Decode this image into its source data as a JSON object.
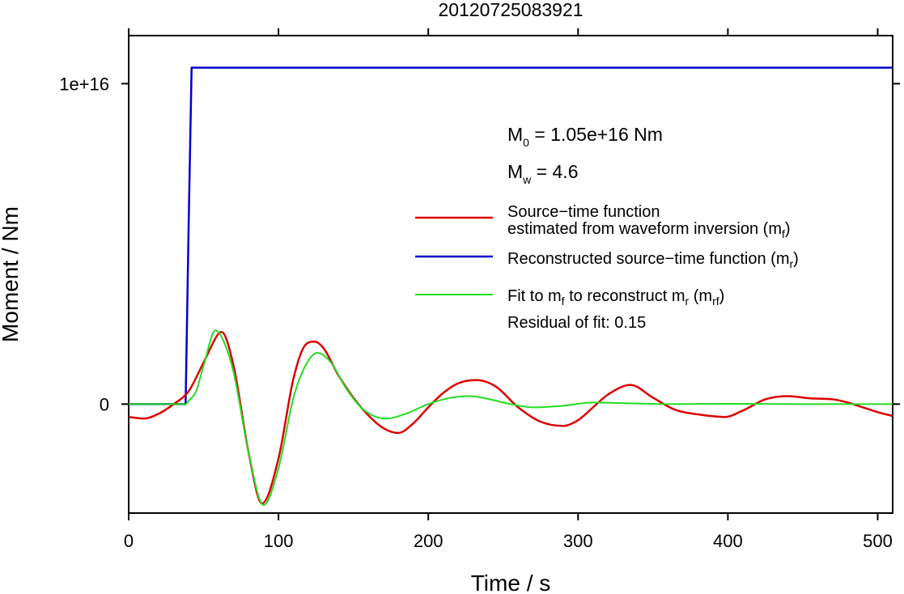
{
  "chart_data": {
    "type": "line",
    "title": "20120725083921",
    "xlabel": "Time / s",
    "ylabel": "Moment / Nm",
    "xlim": [
      0,
      510
    ],
    "ylim": [
      -3400000000000000.0,
      1.15e+16
    ],
    "x_ticks": [
      0,
      100,
      200,
      300,
      400,
      500
    ],
    "x_tick_labels": [
      "0",
      "100",
      "200",
      "300",
      "400",
      "500"
    ],
    "y_ticks": [
      0,
      1e+16
    ],
    "y_tick_labels": [
      "0",
      "1e+16"
    ],
    "grid": false,
    "legend_position": "upper-right",
    "annotations": {
      "m0": {
        "main": "M",
        "sub": "0",
        "rest": " = 1.05e+16 Nm"
      },
      "mw": {
        "main": "M",
        "sub": "w",
        "rest": " = 4.6"
      },
      "residual": "Residual of fit: 0.15"
    },
    "legend": [
      {
        "color": "#dd0000",
        "line1": "Source−time function",
        "line2_main": "estimated from waveform inversion (m",
        "line2_sub": "f",
        "line2_end": ")"
      },
      {
        "color": "#0000cc",
        "main": "Reconstructed source−time function (m",
        "sub": "r",
        "end": ")"
      },
      {
        "color": "#22dd22",
        "a": "Fit to m",
        "a_sub": "f",
        "b": " to reconstruct m",
        "b_sub": "r",
        "c": " (m",
        "c_sub": "rf",
        "d": ")"
      }
    ],
    "series": [
      {
        "color": "#0000cc",
        "x": [
          0,
          38,
          40,
          42,
          510
        ],
        "y": [
          0,
          0,
          5500000000000000.0,
          1.05e+16,
          1.05e+16
        ]
      },
      {
        "color": "#dd0000",
        "x": [
          0,
          10,
          20,
          30,
          40,
          50,
          60,
          62,
          70,
          80,
          89,
          100,
          110,
          118,
          124,
          130,
          140,
          150,
          160,
          170,
          180,
          190,
          200,
          210,
          220,
          232,
          245,
          260,
          275,
          290,
          300,
          310,
          320,
          335,
          350,
          365,
          380,
          398,
          410,
          425,
          440,
          455,
          470,
          480,
          490,
          500,
          510
        ],
        "y": [
          -400000000000000.0,
          -450000000000000.0,
          -300000000000000.0,
          0,
          400000000000000.0,
          1300000000000000.0,
          2200000000000000.0,
          2250000000000000.0,
          1200000000000000.0,
          -1500000000000000.0,
          -3100000000000000.0,
          -1700000000000000.0,
          800000000000000.0,
          1850000000000000.0,
          1950000000000000.0,
          1750000000000000.0,
          900000000000000.0,
          200000000000000.0,
          -350000000000000.0,
          -750000000000000.0,
          -900000000000000.0,
          -600000000000000.0,
          -100000000000000.0,
          350000000000000.0,
          650000000000000.0,
          750000000000000.0,
          550000000000000.0,
          -100000000000000.0,
          -550000000000000.0,
          -680000000000000.0,
          -500000000000000.0,
          -100000000000000.0,
          300000000000000.0,
          600000000000000.0,
          200000000000000.0,
          -180000000000000.0,
          -320000000000000.0,
          -400000000000000.0,
          -200000000000000.0,
          150000000000000.0,
          250000000000000.0,
          180000000000000.0,
          150000000000000.0,
          50000000000000.0,
          -100000000000000.0,
          -250000000000000.0,
          -370000000000000.0
        ]
      },
      {
        "color": "#22dd22",
        "x": [
          0,
          38,
          40,
          45,
          50,
          58,
          62,
          70,
          80,
          90,
          100,
          110,
          118,
          126,
          135,
          145,
          155,
          165,
          172,
          185,
          200,
          215,
          228,
          240,
          255,
          270,
          290,
          310,
          330,
          360,
          400,
          450,
          510
        ],
        "y": [
          0,
          0,
          100000000000000.0,
          400000000000000.0,
          1200000000000000.0,
          2300000000000000.0,
          2100000000000000.0,
          1000000000000000.0,
          -1500000000000000.0,
          -3150000000000000.0,
          -2000000000000000.0,
          200000000000000.0,
          1200000000000000.0,
          1600000000000000.0,
          1300000000000000.0,
          500000000000000.0,
          -100000000000000.0,
          -400000000000000.0,
          -450000000000000.0,
          -300000000000000.0,
          0,
          200000000000000.0,
          250000000000000.0,
          160000000000000.0,
          0,
          -100000000000000.0,
          -50000000000000.0,
          50000000000000.0,
          30000000000000.0,
          0,
          10000000000000.0,
          0,
          0
        ]
      }
    ]
  }
}
